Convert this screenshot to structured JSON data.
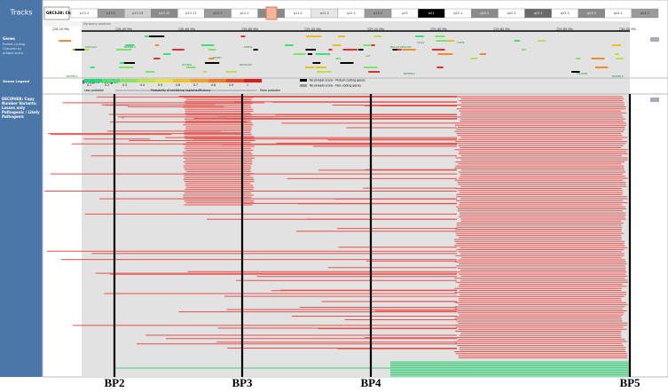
{
  "sidebar": {
    "menu": "Tracks"
  },
  "ideogram": {
    "assembly": "GRCh38: Chr 16",
    "bands": [
      {
        "label": "p13.3",
        "color": "#ffffff"
      },
      {
        "label": "p13.2",
        "color": "#9a9a9a"
      },
      {
        "label": "p13.13",
        "color": "#cfcfcf"
      },
      {
        "label": "p13.12",
        "color": "#8a8a8a"
      },
      {
        "label": "p13.11",
        "color": "#ffffff"
      },
      {
        "label": "p12.3",
        "color": "#9a9a9a"
      },
      {
        "label": "p12.2",
        "color": "#ffffff"
      },
      {
        "label": "p12.1",
        "color": "#8a8a8a"
      },
      {
        "label": "p11.2",
        "color": "#ffffff"
      },
      {
        "label": "q11.2",
        "color": "#e6e6e6"
      },
      {
        "label": "q12.1",
        "color": "#ffffff"
      },
      {
        "label": "q12.2",
        "color": "#9a9a9a"
      },
      {
        "label": "q13",
        "color": "#ffffff"
      },
      {
        "label": "q21",
        "color": "#000000"
      },
      {
        "label": "q22.1",
        "color": "#ffffff"
      },
      {
        "label": "q22.2",
        "color": "#8a8a8a"
      },
      {
        "label": "q22.3",
        "color": "#ffffff"
      },
      {
        "label": "q23.1",
        "color": "#6a6a6a"
      },
      {
        "label": "q23.2",
        "color": "#ffffff"
      },
      {
        "label": "q23.3",
        "color": "#8a8a8a"
      },
      {
        "label": "q24.1",
        "color": "#ffffff"
      },
      {
        "label": "q24.2",
        "color": "#9a9a9a"
      }
    ]
  },
  "query": "No query position",
  "scale": [
    "28.20 Mb",
    "28.40 Mb",
    "28.60 Mb",
    "28.80 Mb",
    "29.00 Mb",
    "29.20 Mb",
    "29.40 Mb",
    "29.60 Mb",
    "29.80 Mb",
    "30.00 Mb"
  ],
  "genes_track": {
    "title": "Genes",
    "lines": [
      "Protein coding",
      "Coloured by",
      "pHaplo score"
    ],
    "genes": [
      "NPIPB12",
      "SULT1A3",
      "NPIPB13",
      "ATXN2L",
      "SH2B1",
      "NFATC2IP",
      "SPNS1",
      "LAT",
      "BOLA2-SMG1P6",
      "CD19",
      "TUFM",
      "NPIPB12",
      "TLCD3B",
      "NPIPB13"
    ]
  },
  "legend": {
    "title": "Genes Legend",
    "range_label": "pHaplo range:",
    "ticks": [
      "0.1",
      "0.2",
      "0.3",
      "0.4",
      "0.5",
      "0.6",
      "0.7",
      "0.8",
      "0.9",
      "1"
    ],
    "less": "Less probable",
    "middle": "Probability of exhibiting haploinsufficiency",
    "more": "More probable",
    "keys": [
      "No pHaplo score - Protein coding genes",
      "No pHaplo score - Non coding genes"
    ]
  },
  "cnv_track": {
    "title": "DECIPHER: Copy Number Variants: Losses only Pathogenic / Likely Pathogenic"
  },
  "breakpoints": [
    "BP2",
    "BP3",
    "BP4",
    "BP5"
  ]
}
